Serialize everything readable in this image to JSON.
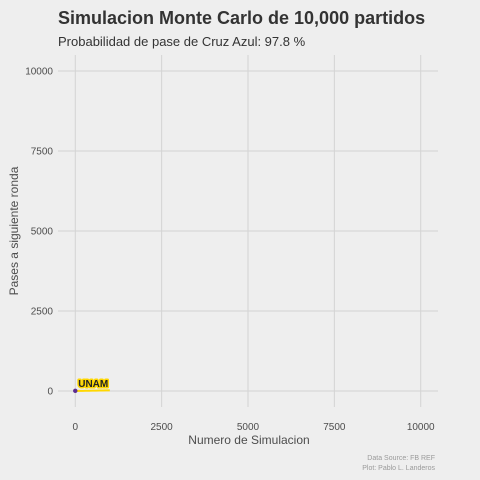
{
  "chart_data": {
    "type": "line",
    "title": "Simulacion Monte Carlo de 10,000 partidos",
    "subtitle": "Probabilidad de pase de Cruz Azul: 97.8 %",
    "xlabel": "Numero de Simulacion",
    "ylabel": "Pases a siguiente ronda",
    "xlim": [
      -500,
      10500
    ],
    "ylim": [
      -500,
      10500
    ],
    "x_ticks": [
      0,
      2500,
      5000,
      7500,
      10000
    ],
    "y_ticks": [
      0,
      2500,
      5000,
      7500,
      10000
    ],
    "grid": true,
    "series": [
      {
        "name": "UNAM",
        "color": "#ffd700",
        "x": [
          0,
          100,
          200,
          300,
          400,
          500,
          600,
          700,
          800,
          900,
          1000
        ],
        "y": [
          1,
          3,
          5,
          7,
          8,
          10,
          12,
          14,
          16,
          18,
          20
        ]
      }
    ],
    "annotations": [
      {
        "text": "UNAM",
        "x": 520,
        "y": 120
      }
    ],
    "marker": {
      "x": 0,
      "y": 5,
      "color": "#5b2c91"
    },
    "caption": [
      "Data Source: FB REF",
      "Plot: Pablo L. Landeros"
    ]
  }
}
